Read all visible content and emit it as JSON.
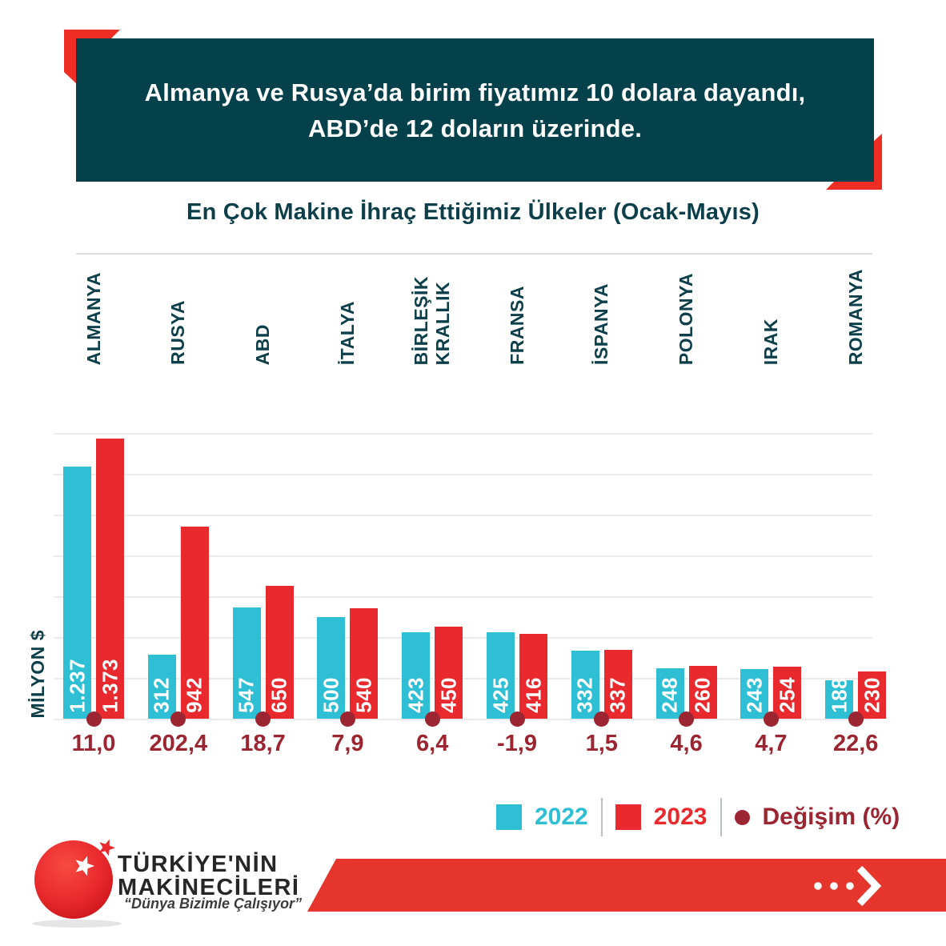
{
  "header": {
    "title_line1": "Almanya ve Rusya’da birim fiyatımız 10 dolara dayandı,",
    "title_line2": "ABD’de 12 doların üzerinde."
  },
  "chart_data": {
    "type": "bar",
    "title": "En Çok Makine İhraç Ettiğimiz Ülkeler (Ocak-Mayıs)",
    "ylabel": "MİLYON $",
    "ylim": [
      0,
      1400
    ],
    "gridline_step": 200,
    "grid": true,
    "legend_position": "bottom-right",
    "categories": [
      "ALMANYA",
      "RUSYA",
      "ABD",
      "İTALYA",
      "BİRLEŞİK KRALLIK",
      "FRANSA",
      "İSPANYA",
      "POLONYA",
      "IRAK",
      "ROMANYA"
    ],
    "series": [
      {
        "name": "2022",
        "color": "#2ebfd4",
        "values": [
          1237,
          312,
          547,
          500,
          423,
          425,
          332,
          248,
          243,
          188
        ],
        "labels": [
          "1.237",
          "312",
          "547",
          "500",
          "423",
          "425",
          "332",
          "248",
          "243",
          "188"
        ]
      },
      {
        "name": "2023",
        "color": "#e8292d",
        "values": [
          1373,
          942,
          650,
          540,
          450,
          416,
          337,
          260,
          254,
          230
        ],
        "labels": [
          "1.373",
          "942",
          "650",
          "540",
          "450",
          "416",
          "337",
          "260",
          "254",
          "230"
        ]
      }
    ],
    "change_series": {
      "name": "Değişim (%)",
      "color": "#9b2531",
      "labels": [
        "11,0",
        "202,4",
        "18,7",
        "7,9",
        "6,4",
        "-1,9",
        "1,5",
        "4,6",
        "4,7",
        "22,6"
      ]
    }
  },
  "legend": {
    "items": [
      {
        "label": "2022",
        "color": "#2ebfd4",
        "marker": "square"
      },
      {
        "label": "2023",
        "color": "#e8292d",
        "marker": "square"
      },
      {
        "label": "Değişim (%)",
        "color": "#9b2531",
        "marker": "dot"
      }
    ]
  },
  "footer": {
    "logo_line1": "TÜRKİYE'NİN",
    "logo_line2": "MAKİNECİLERİ",
    "tagline": "“Dünya Bizimle Çalışıyor”",
    "more_icon": "ellipsis-arrow-right"
  },
  "colors": {
    "banner_bg": "#05414b",
    "heading_text": "#0d3f4a",
    "bar_2022": "#2ebfd4",
    "bar_2023": "#e8292d",
    "change": "#9b2531",
    "accent_red": "#ee2e24",
    "footer_banner": "#e5352c",
    "grid": "#ebebeb",
    "logo_text": "#262626"
  }
}
